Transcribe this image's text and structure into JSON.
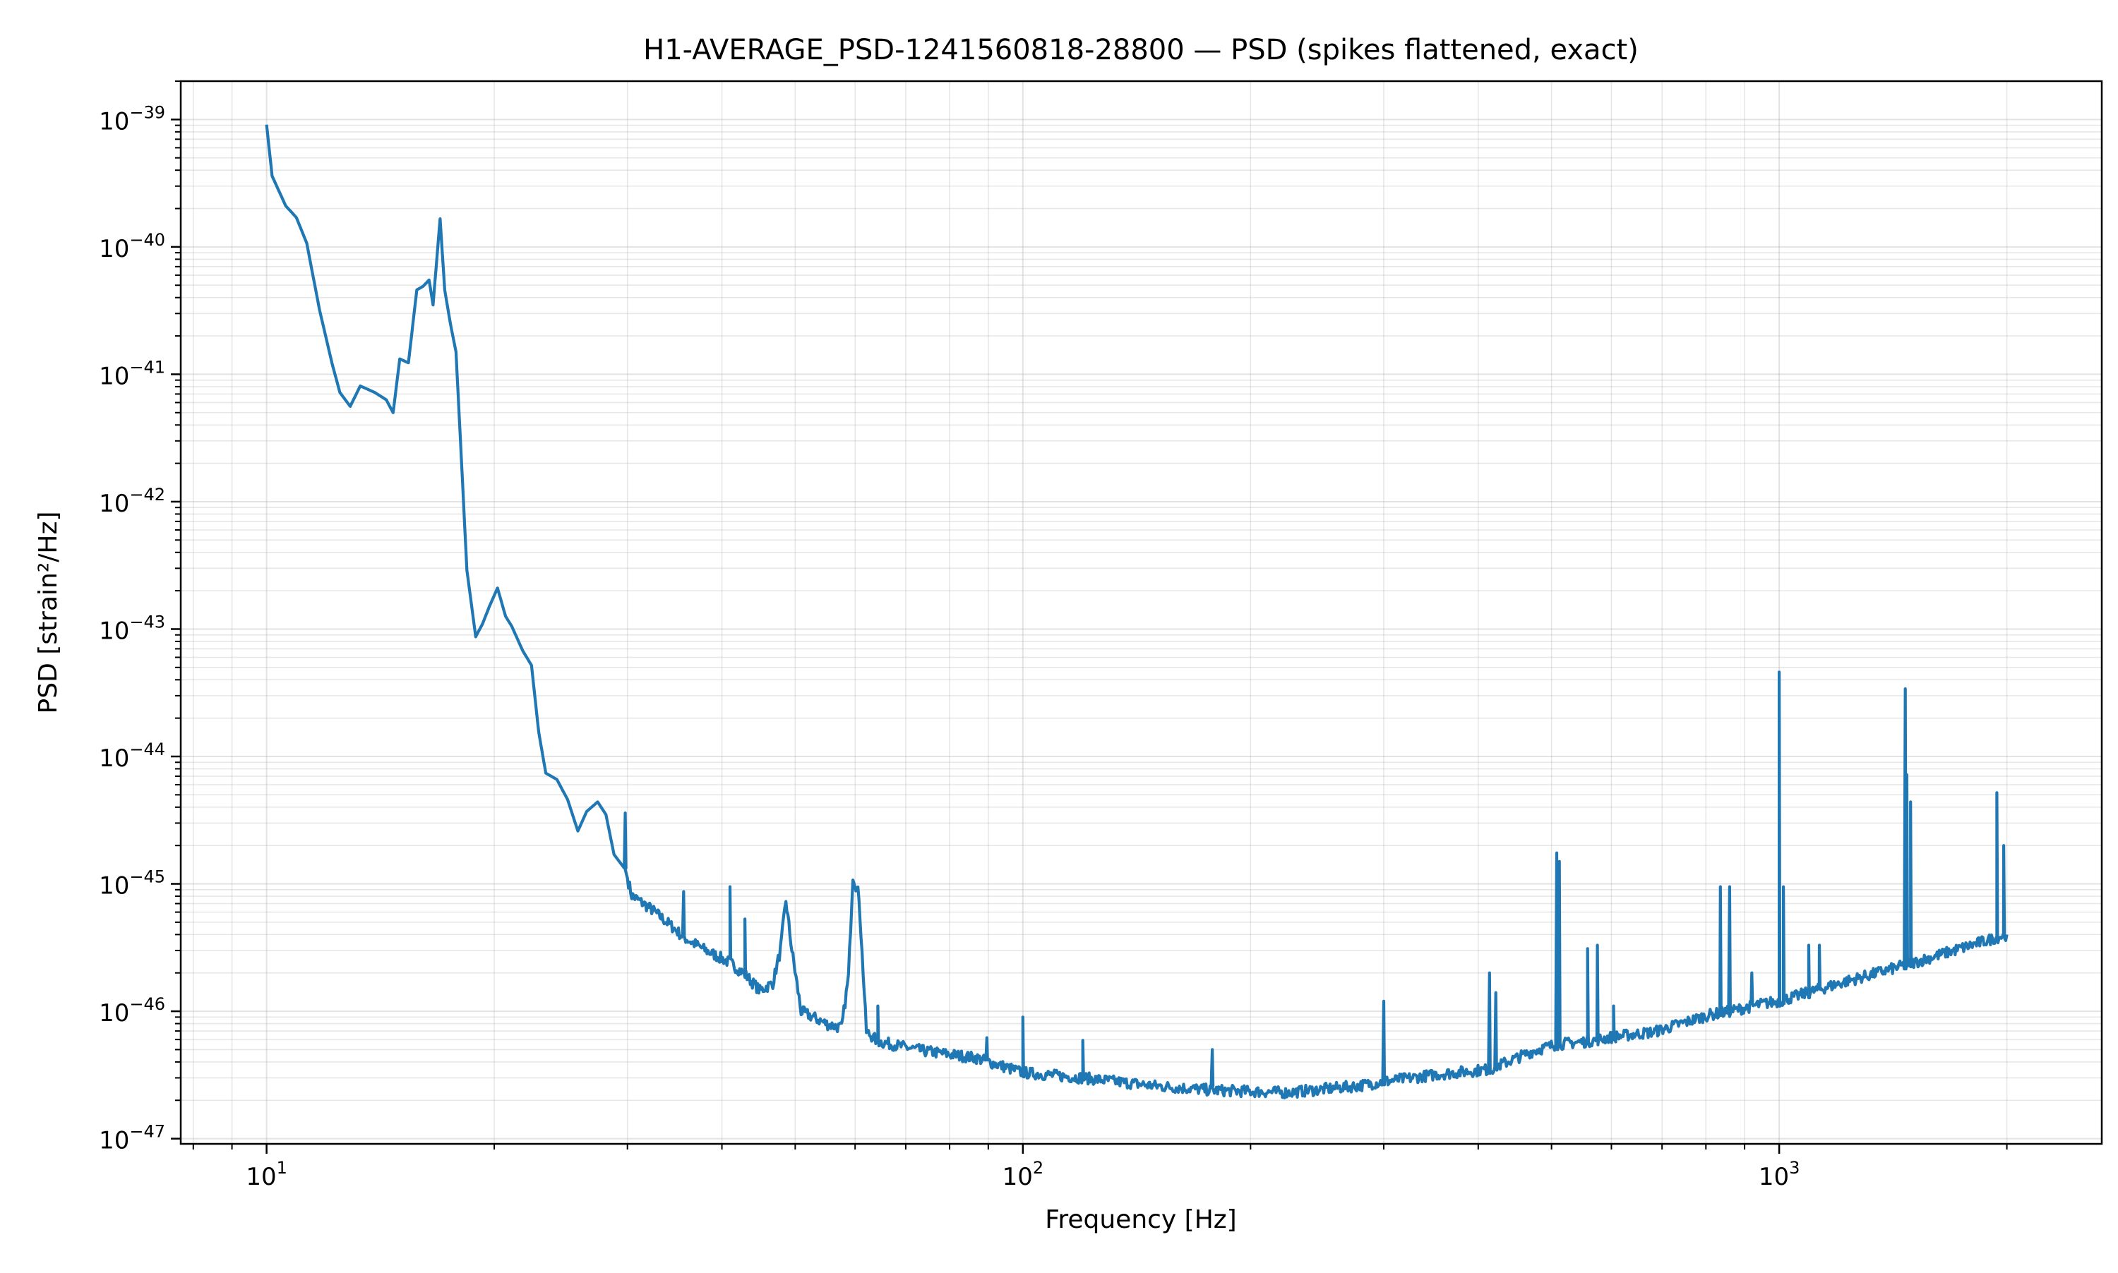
{
  "chart_data": {
    "type": "line",
    "title": "H1-AVERAGE_PSD-1241560818-28800 — PSD (spikes flattened, exact)",
    "xlabel": "Frequency [Hz]",
    "ylabel": "PSD [strain²/Hz]",
    "xscale": "log",
    "yscale": "log",
    "xlim": [
      7.7,
      2670
    ],
    "ylim": [
      9.1e-48,
      2e-39
    ],
    "grid": "major and minor, both axes",
    "line_color": "#1f77b4",
    "x_ticks": [
      {
        "value": 10,
        "base": "10",
        "exp": "1"
      },
      {
        "value": 100,
        "base": "10",
        "exp": "2"
      },
      {
        "value": 1000,
        "base": "10",
        "exp": "3"
      }
    ],
    "y_ticks": [
      {
        "value": 1e-39,
        "base": "10",
        "exp": "−39"
      },
      {
        "value": 1e-40,
        "base": "10",
        "exp": "−40"
      },
      {
        "value": 1e-41,
        "base": "10",
        "exp": "−41"
      },
      {
        "value": 1e-42,
        "base": "10",
        "exp": "−42"
      },
      {
        "value": 1e-43,
        "base": "10",
        "exp": "−43"
      },
      {
        "value": 1e-44,
        "base": "10",
        "exp": "−44"
      },
      {
        "value": 1e-45,
        "base": "10",
        "exp": "−45"
      },
      {
        "value": 1e-46,
        "base": "10",
        "exp": "−46"
      },
      {
        "value": 1e-47,
        "base": "10",
        "exp": "−47"
      }
    ],
    "series": [
      {
        "name": "PSD",
        "points": [
          [
            10.0,
            9.1e-40
          ],
          [
            10.17,
            3.6e-40
          ],
          [
            10.6,
            2.1e-40
          ],
          [
            10.95,
            1.7e-40
          ],
          [
            11.3,
            1.07e-40
          ],
          [
            11.75,
            3.2e-41
          ],
          [
            12.2,
            1.23e-41
          ],
          [
            12.5,
            7.2e-42
          ],
          [
            12.9,
            5.6e-42
          ],
          [
            13.3,
            8.1e-42
          ],
          [
            13.9,
            7.2e-42
          ],
          [
            14.4,
            6.3e-42
          ],
          [
            14.7,
            5e-42
          ],
          [
            15.0,
            1.32e-41
          ],
          [
            15.4,
            1.23e-41
          ],
          [
            15.8,
            4.6e-41
          ],
          [
            16.1,
            4.9e-41
          ],
          [
            16.4,
            5.5e-41
          ],
          [
            16.6,
            3.5e-41
          ],
          [
            16.96,
            1.66e-40
          ],
          [
            17.2,
            4.6e-41
          ],
          [
            17.5,
            2.5e-41
          ],
          [
            17.8,
            1.5e-41
          ],
          [
            18.1,
            2.1e-42
          ],
          [
            18.4,
            2.9e-43
          ],
          [
            18.6,
            1.8e-43
          ],
          [
            18.9,
            8.7e-44
          ],
          [
            19.3,
            1.1e-43
          ],
          [
            19.7,
            1.5e-43
          ],
          [
            20.2,
            2.1e-43
          ],
          [
            20.7,
            1.26e-43
          ],
          [
            21.1,
            1.05e-43
          ],
          [
            21.8,
            6.8e-44
          ],
          [
            22.4,
            5.2e-44
          ],
          [
            22.9,
            1.55e-44
          ],
          [
            23.4,
            7.4e-45
          ],
          [
            24.2,
            6.6e-45
          ],
          [
            25.0,
            4.6e-45
          ],
          [
            25.8,
            2.6e-45
          ],
          [
            26.5,
            3.7e-45
          ],
          [
            27.4,
            4.4e-45
          ],
          [
            28.1,
            3.5e-45
          ],
          [
            28.8,
            1.7e-45
          ],
          [
            29.8,
            1.3e-45
          ],
          [
            30.4,
            8.1e-46
          ],
          [
            32.3,
            6.3e-46
          ],
          [
            34.4,
            4.6e-46
          ],
          [
            35.6,
            3.8e-46
          ],
          [
            38.1,
            3e-46
          ],
          [
            41.0,
            2.4e-46
          ],
          [
            42.9,
            1.95e-46
          ],
          [
            44.9,
            1.45e-46
          ],
          [
            46.7,
            1.66e-46
          ],
          [
            47.8,
            3e-46
          ],
          [
            48.6,
            7.4e-46
          ],
          [
            49.5,
            3e-46
          ],
          [
            50.9,
            1e-46
          ],
          [
            55.2,
            7.9e-47
          ],
          [
            57.6,
            7.4e-47
          ],
          [
            58.8,
            1.86e-46
          ],
          [
            59.6,
            1.17e-45
          ],
          [
            60.7,
            8.1e-46
          ],
          [
            62.1,
            6.9e-47
          ],
          [
            64.3,
            5.8e-47
          ],
          [
            73.6,
            4.9e-47
          ],
          [
            86.8,
            4.3e-47
          ],
          [
            100,
            3.3e-47
          ],
          [
            120,
            3e-47
          ],
          [
            149,
            2.6e-47
          ],
          [
            178,
            2.4e-47
          ],
          [
            224,
            2.3e-47
          ],
          [
            278,
            2.6e-47
          ],
          [
            300,
            2.8e-47
          ],
          [
            354,
            3.2e-47
          ],
          [
            414,
            3.5e-47
          ],
          [
            474,
            4.9e-47
          ],
          [
            508,
            5.5e-47
          ],
          [
            558,
            5.8e-47
          ],
          [
            604,
            6.3e-47
          ],
          [
            684,
            6.9e-47
          ],
          [
            805,
            9.3e-47
          ],
          [
            860,
            1e-46
          ],
          [
            955,
            1.15e-46
          ],
          [
            1000,
            1.2e-46
          ],
          [
            1220,
            1.7e-46
          ],
          [
            1468,
            2.3e-46
          ],
          [
            1703,
            3e-46
          ],
          [
            1940,
            3.8e-46
          ],
          [
            2000,
            4e-46
          ]
        ],
        "spikes": [
          [
            29.8,
            3.6e-45
          ],
          [
            35.6,
            8.7e-46
          ],
          [
            41.0,
            9.5e-46
          ],
          [
            42.9,
            5.3e-46
          ],
          [
            64.3,
            1.1e-46
          ],
          [
            89.6,
            6.2e-47
          ],
          [
            100,
            9e-47
          ],
          [
            120,
            5.9e-47
          ],
          [
            178,
            5e-47
          ],
          [
            300,
            1.2e-46
          ],
          [
            414,
            2e-46
          ],
          [
            422,
            1.4e-46
          ],
          [
            508,
            1.75e-45
          ],
          [
            512,
            1.5e-45
          ],
          [
            558,
            3.1e-46
          ],
          [
            575,
            3.3e-46
          ],
          [
            604,
            1.1e-46
          ],
          [
            836,
            9.5e-46
          ],
          [
            860,
            9.5e-46
          ],
          [
            920,
            2e-46
          ],
          [
            1000,
            4.6e-44
          ],
          [
            1013,
            9.5e-46
          ],
          [
            1094,
            3.3e-46
          ],
          [
            1130,
            3.3e-46
          ],
          [
            1468,
            3.4e-44
          ],
          [
            1475,
            7.2e-45
          ],
          [
            1492,
            4.4e-45
          ],
          [
            1940,
            5.2e-45
          ],
          [
            1981,
            2e-45
          ]
        ]
      }
    ]
  }
}
